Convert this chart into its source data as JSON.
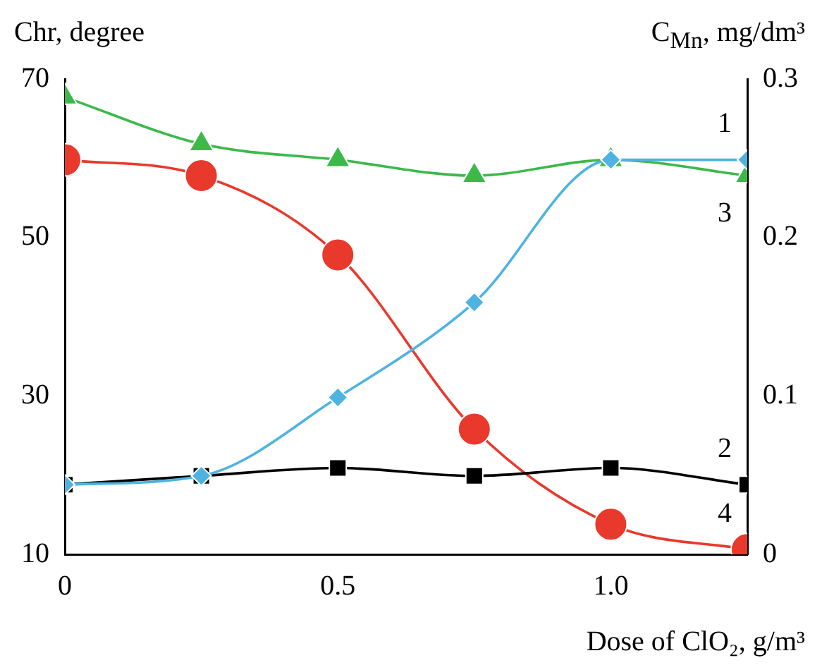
{
  "chart_data": {
    "type": "line",
    "xlabel": "Dose of ClO₂, g/m³",
    "ylabel": "Chr, degree",
    "y2label": "C$_{Mn}$, mg/dm³",
    "x": [
      0,
      0.25,
      0.5,
      0.75,
      1.0,
      1.25
    ],
    "series": [
      {
        "name": "1",
        "color": "#4eb3e0",
        "marker": "diamond",
        "values": [
          18.8,
          19.9,
          29.8,
          41.8,
          59.8,
          59.8
        ]
      },
      {
        "name": "2",
        "color": "#000000",
        "marker": "square",
        "values": [
          18.8,
          19.9,
          20.9,
          19.9,
          20.9,
          18.8
        ]
      },
      {
        "name": "3",
        "color": "#3cb94a",
        "marker": "triangle",
        "values": [
          67.7,
          61.8,
          59.8,
          57.8,
          59.8,
          57.8
        ]
      },
      {
        "name": "4",
        "color": "#e8392c",
        "marker": "circle",
        "axis": "y2",
        "values": [
          0.249,
          0.239,
          0.189,
          0.079,
          0.019,
          0.003
        ]
      }
    ],
    "xlim": [
      0,
      1.25
    ],
    "xticks": [
      0,
      0.5,
      {
        "value": 1,
        "label": "1.0"
      }
    ],
    "ylim": [
      10,
      70
    ],
    "yticks": [
      10,
      30,
      50,
      70
    ],
    "y2lim": [
      0,
      0.3
    ],
    "y2ticks": [
      0,
      0.1,
      0.2,
      0.3
    ],
    "grid": false,
    "legend": false
  }
}
